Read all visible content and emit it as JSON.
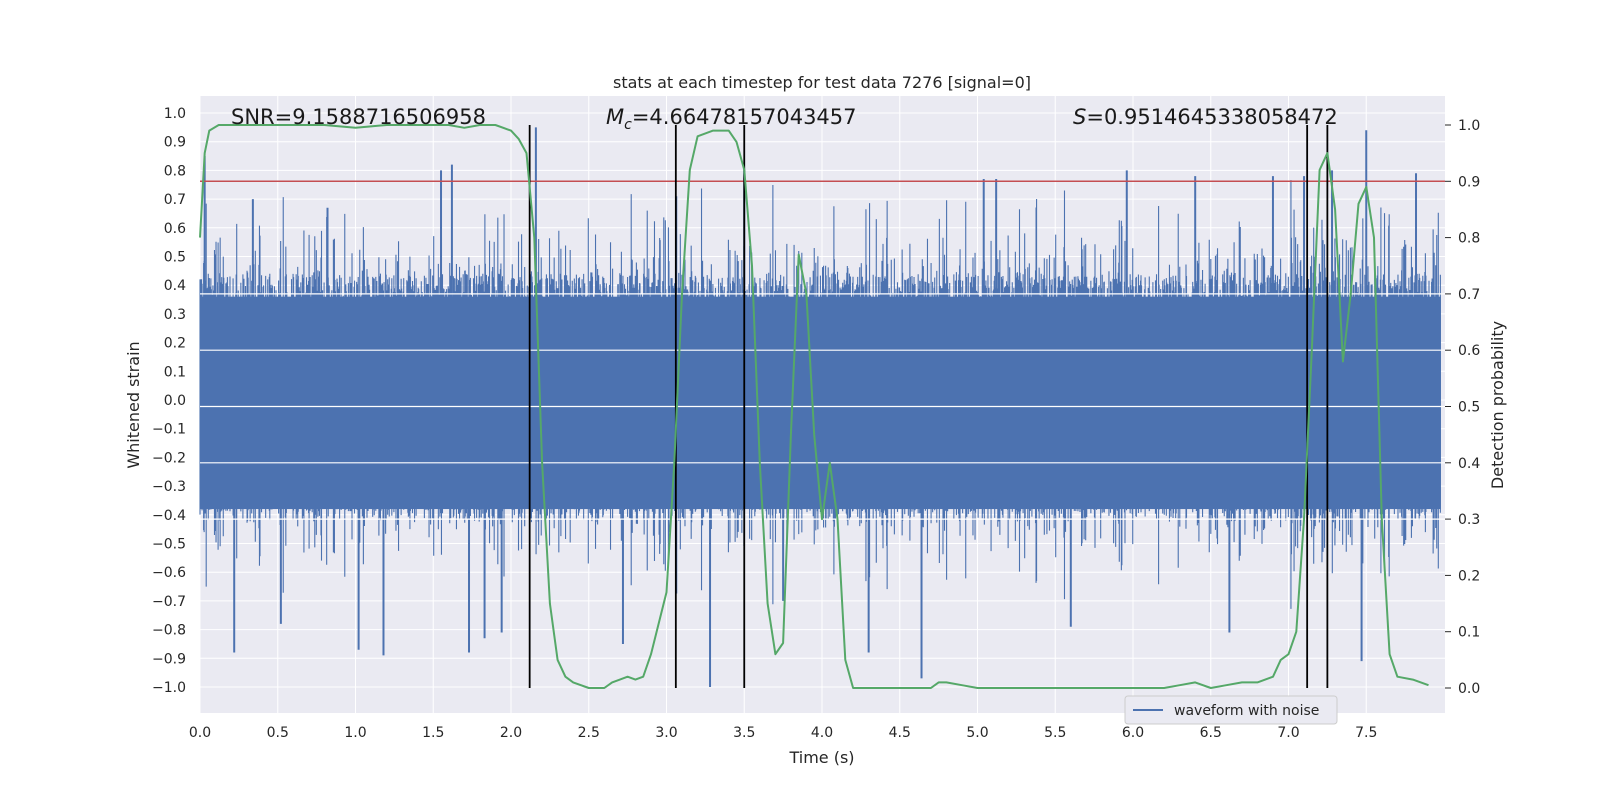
{
  "chart_data": {
    "type": "line",
    "title": "stats at each timestep for test data 7276 [signal=0]",
    "xlabel": "Time (s)",
    "ylabel_left": "Whitened strain",
    "ylabel_right": "Detection probability",
    "xlim": [
      0.0,
      8.0
    ],
    "ylim_left": [
      -1.09,
      1.06
    ],
    "ylim_right": [
      -0.05,
      1.045
    ],
    "x_ticks": [
      "0.0",
      "0.5",
      "1.0",
      "1.5",
      "2.0",
      "2.5",
      "3.0",
      "3.5",
      "4.0",
      "4.5",
      "5.0",
      "5.5",
      "6.0",
      "6.5",
      "7.0",
      "7.5"
    ],
    "y_ticks_left": [
      "1.0",
      "0.9",
      "0.8",
      "0.7",
      "0.6",
      "0.5",
      "0.4",
      "0.3",
      "0.2",
      "0.1",
      "0.0",
      "-0.1",
      "-0.2",
      "-0.3",
      "-0.4",
      "-0.5",
      "-0.6",
      "-0.7",
      "-0.8",
      "-0.9",
      "-1.0"
    ],
    "y_ticks_right": [
      "1.0",
      "0.9",
      "0.8",
      "0.7",
      "0.6",
      "0.5",
      "0.4",
      "0.3",
      "0.2",
      "0.1",
      "0.0"
    ],
    "annotations": {
      "snr": "SNR=9.1588716506958",
      "mc_symbol": "M",
      "mc_sub": "c",
      "mc_value": "=4.66478157043457",
      "s_symbol": "S",
      "s_value": "=0.9514645338058472"
    },
    "threshold_line": {
      "y_right": 0.9,
      "color": "#c44e52"
    },
    "vertical_lines_x": [
      2.12,
      3.06,
      3.5,
      7.12,
      7.25
    ],
    "series": [
      {
        "name": "waveform with noise",
        "color": "#4c72b0",
        "note": "dense noisy whitened strain, roughly symmetric, envelope about ±0.4 with spikes near ±0.9",
        "spikes": [
          [
            0.03,
            0.85
          ],
          [
            0.22,
            -0.88
          ],
          [
            0.34,
            0.7
          ],
          [
            0.52,
            -0.78
          ],
          [
            0.82,
            0.67
          ],
          [
            1.02,
            -0.87
          ],
          [
            1.18,
            -0.89
          ],
          [
            1.55,
            0.8
          ],
          [
            1.62,
            0.82
          ],
          [
            1.73,
            -0.88
          ],
          [
            1.83,
            -0.83
          ],
          [
            1.94,
            -0.81
          ],
          [
            2.16,
            0.95
          ],
          [
            2.72,
            -0.85
          ],
          [
            3.28,
            -1.0
          ],
          [
            3.5,
            0.8
          ],
          [
            3.75,
            -0.7
          ],
          [
            4.3,
            -0.88
          ],
          [
            4.64,
            -0.97
          ],
          [
            5.04,
            0.77
          ],
          [
            5.12,
            0.77
          ],
          [
            5.6,
            -0.79
          ],
          [
            5.96,
            0.8
          ],
          [
            6.4,
            0.78
          ],
          [
            6.62,
            -0.81
          ],
          [
            6.9,
            0.78
          ],
          [
            7.1,
            0.78
          ],
          [
            7.28,
            0.8
          ],
          [
            7.5,
            0.94
          ],
          [
            7.47,
            -0.91
          ],
          [
            7.82,
            0.79
          ]
        ]
      },
      {
        "name": "detection probability",
        "color": "#55a868",
        "axis": "right",
        "x": [
          0.0,
          0.03,
          0.06,
          0.12,
          0.2,
          0.4,
          0.6,
          0.8,
          1.0,
          1.2,
          1.4,
          1.6,
          1.7,
          1.8,
          1.9,
          2.0,
          2.05,
          2.1,
          2.15,
          2.2,
          2.25,
          2.3,
          2.35,
          2.4,
          2.5,
          2.6,
          2.65,
          2.7,
          2.75,
          2.8,
          2.85,
          2.9,
          3.0,
          3.05,
          3.1,
          3.15,
          3.2,
          3.3,
          3.4,
          3.45,
          3.5,
          3.55,
          3.6,
          3.65,
          3.7,
          3.75,
          3.8,
          3.85,
          3.9,
          3.95,
          4.0,
          4.05,
          4.1,
          4.15,
          4.2,
          4.3,
          4.4,
          4.5,
          4.6,
          4.7,
          4.75,
          4.8,
          4.9,
          5.0,
          5.2,
          5.4,
          5.6,
          5.8,
          6.0,
          6.2,
          6.3,
          6.4,
          6.5,
          6.6,
          6.7,
          6.8,
          6.9,
          6.95,
          7.0,
          7.05,
          7.1,
          7.15,
          7.2,
          7.25,
          7.3,
          7.35,
          7.4,
          7.45,
          7.5,
          7.55,
          7.6,
          7.65,
          7.7,
          7.8,
          7.9
        ],
        "y": [
          0.8,
          0.95,
          0.99,
          1.0,
          1.0,
          1.0,
          1.0,
          1.0,
          0.995,
          1.0,
          1.0,
          1.0,
          0.995,
          1.0,
          1.0,
          0.99,
          0.975,
          0.95,
          0.8,
          0.4,
          0.15,
          0.05,
          0.02,
          0.01,
          0.0,
          0.0,
          0.01,
          0.015,
          0.02,
          0.015,
          0.02,
          0.06,
          0.17,
          0.4,
          0.7,
          0.92,
          0.98,
          0.99,
          0.99,
          0.97,
          0.92,
          0.75,
          0.4,
          0.15,
          0.06,
          0.08,
          0.45,
          0.77,
          0.7,
          0.45,
          0.3,
          0.4,
          0.3,
          0.05,
          0.0,
          0.0,
          0.0,
          0.0,
          0.0,
          0.0,
          0.01,
          0.01,
          0.005,
          0.0,
          0.0,
          0.0,
          0.0,
          0.0,
          0.0,
          0.0,
          0.005,
          0.01,
          0.0,
          0.005,
          0.01,
          0.01,
          0.02,
          0.05,
          0.06,
          0.1,
          0.3,
          0.6,
          0.92,
          0.95,
          0.85,
          0.58,
          0.7,
          0.86,
          0.89,
          0.8,
          0.3,
          0.06,
          0.02,
          0.015,
          0.005
        ]
      }
    ],
    "legend": {
      "position": "lower-right",
      "entries": [
        "waveform with noise"
      ]
    }
  }
}
